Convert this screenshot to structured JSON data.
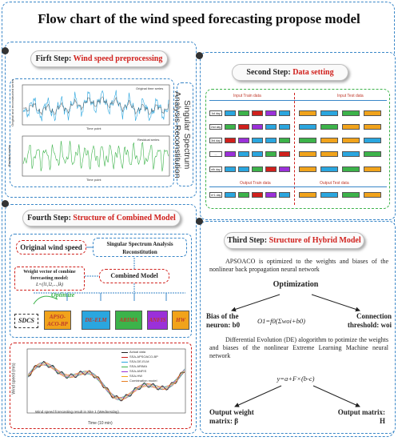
{
  "title": "Flow chart of the wind speed forecasting propose model",
  "step1": {
    "prefix": "Firft Step: ",
    "highlight": "Wind speed preprocessing",
    "ssa_label": "Singular Spectrum Analysis Reconstitution",
    "plot1": {
      "legend": "Original time series",
      "ylabel": "Original and reconstructed series",
      "xlabel": "Time point"
    },
    "plot2": {
      "legend": "Residual series",
      "ylabel": "Residual series",
      "xlabel": "Time point"
    }
  },
  "step2": {
    "prefix": "Second Step: ",
    "highlight": "Data setting",
    "input_train": "Input Train data",
    "input_test": "Input Test data",
    "output_train": "Output Train data",
    "output_test": "Output Test data",
    "row_labels": [
      "1st day",
      "2nd day",
      "3rd day",
      "...",
      "nth day",
      "n+1 day"
    ]
  },
  "step3": {
    "prefix": "Third Step: ",
    "highlight": "Structure of Hybrid Model",
    "paragraph1": "APSOACO is optimized to the weights and biases of the nonlinear back propagation neural network",
    "optimization": "Optimization",
    "bias": "Bias of the neuron: b0",
    "equation": "O1=f0(Σwoi+b0)",
    "threshold": "Connection threshold: woi",
    "paragraph2": "Differential Evolution (DE) alogorithm to potimize the weights and biases of the nonlinear Extreme Learning Machine neural network",
    "de_equation": "y=a+F×(b-c)",
    "output_weight": "Output weight matrix: β",
    "output_matrix": "Output matrix: H"
  },
  "step4": {
    "prefix": "Fourth Step: ",
    "highlight": "Structure of Combined Model",
    "original": "Original wind speed",
    "ssa": "Singular Spectrum Analysis Reconstitution",
    "weight_vector": "Weight vector of combine forecasting model:",
    "weight_formula": "L=(l1,l2,...,lk)",
    "combined": "Combined Model",
    "optimize": "Optimize",
    "sdcs": "SDCS",
    "models": [
      "APSO-ACO-BP",
      "DE-ELM",
      "ARIMA",
      "ANFIS",
      "HW"
    ],
    "chart": {
      "ylabel": "Wind speed (m/s)",
      "xlabel": "Time (10 min)",
      "annotation": "Wind speed forecasting result in Site 1 (Wednesday)",
      "legend": [
        "Actual data",
        "SSA-APSOACO-BP",
        "SSA-DE-ELM",
        "SSA-ARIMA",
        "SSA-ANFIS",
        "SSA-HW",
        "Combination model"
      ]
    }
  },
  "colors": {
    "accent_blue": "#3a87c8",
    "highlight_red": "#d0201c",
    "green": "#3cb34a",
    "orange": "#f1a31b",
    "purple": "#9b30d9",
    "light_blue": "#2aa6df"
  }
}
